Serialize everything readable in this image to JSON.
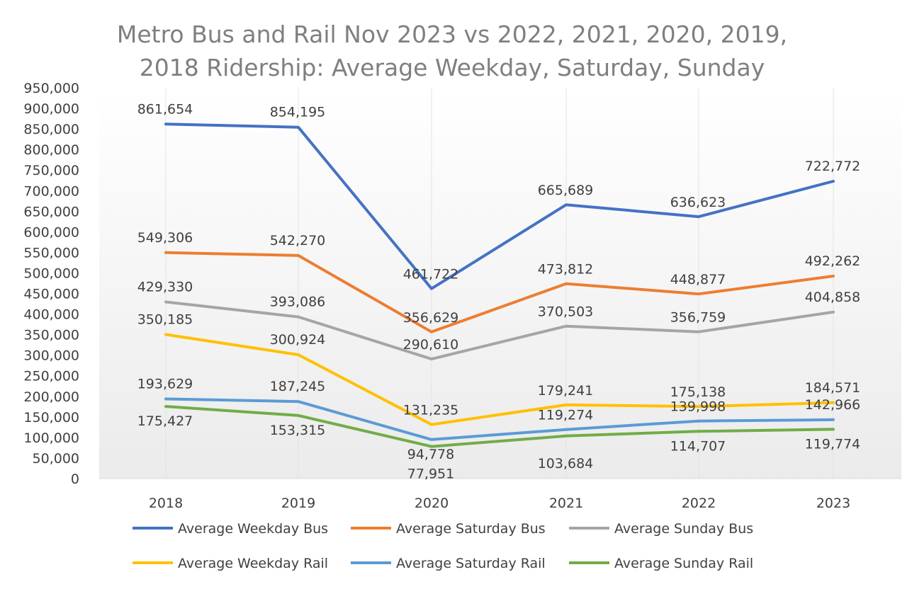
{
  "chart_data": {
    "type": "line",
    "title_lines": [
      "Metro Bus and Rail Nov 2023 vs 2022, 2021, 2020, 2019,",
      "2018 Ridership: Average Weekday, Saturday, Sunday"
    ],
    "x": [
      "2018",
      "2019",
      "2020",
      "2021",
      "2022",
      "2023"
    ],
    "ylim": [
      0,
      950000
    ],
    "ytick_step": 50000,
    "ytick_labels": [
      "0",
      "50,000",
      "100,000",
      "150,000",
      "200,000",
      "250,000",
      "300,000",
      "350,000",
      "400,000",
      "450,000",
      "500,000",
      "550,000",
      "600,000",
      "650,000",
      "700,000",
      "750,000",
      "800,000",
      "850,000",
      "900,000",
      "950,000"
    ],
    "grid": "vertical",
    "legend_position": "bottom",
    "series": [
      {
        "name": "Average Weekday Bus",
        "color": "#4472c4",
        "values": [
          861654,
          854195,
          461722,
          665689,
          636623,
          722772
        ],
        "labels": [
          "861,654",
          "854,195",
          "461,722",
          "665,689",
          "636,623",
          "722,772"
        ]
      },
      {
        "name": "Average Saturday Bus",
        "color": "#ed7d31",
        "values": [
          549306,
          542270,
          356629,
          473812,
          448877,
          492262
        ],
        "labels": [
          "549,306",
          "542,270",
          "356,629",
          "473,812",
          "448,877",
          "492,262"
        ]
      },
      {
        "name": "Average Sunday Bus",
        "color": "#a5a5a5",
        "values": [
          429330,
          393086,
          290610,
          370503,
          356759,
          404858
        ],
        "labels": [
          "429,330",
          "393,086",
          "290,610",
          "370,503",
          "356,759",
          "404,858"
        ]
      },
      {
        "name": "Average Weekday Rail",
        "color": "#ffc000",
        "values": [
          350185,
          300924,
          131235,
          179241,
          175138,
          184571
        ],
        "labels": [
          "350,185",
          "300,924",
          "131,235",
          "179,241",
          "175,138",
          "184,571"
        ]
      },
      {
        "name": "Average Saturday Rail",
        "color": "#5b9bd5",
        "values": [
          193629,
          187245,
          94778,
          119274,
          139998,
          142966
        ],
        "labels": [
          "193,629",
          "187,245",
          "94,778",
          "119,274",
          "139,998",
          "142,966"
        ]
      },
      {
        "name": "Average Sunday Rail",
        "color": "#70ad47",
        "values": [
          175427,
          153315,
          77951,
          103684,
          114707,
          119774
        ],
        "labels": [
          "175,427",
          "153,315",
          "77,951",
          "103,684",
          "114,707",
          "119,774"
        ]
      }
    ]
  }
}
